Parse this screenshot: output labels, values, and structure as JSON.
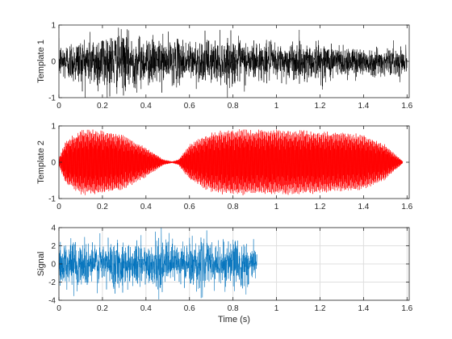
{
  "figure": {
    "xlabel": "Time (s)"
  },
  "chart_data": [
    {
      "type": "line",
      "ylabel": "Template 1",
      "xlim": [
        0,
        1.61
      ],
      "ylim": [
        -1,
        1
      ],
      "xticks": [
        0,
        0.2,
        0.4,
        0.6,
        0.8,
        1,
        1.2,
        1.4,
        1.6
      ],
      "xtick_labels": [
        "0",
        "0.2",
        "0.4",
        "0.6",
        "0.8",
        "1",
        "1.2",
        "1.4",
        "1.6"
      ],
      "yticks": [
        -1,
        0,
        1
      ],
      "ytick_labels": [
        "-1",
        "0",
        "1"
      ],
      "grid": false,
      "color": "#000000",
      "series": [
        {
          "x_range": [
            0,
            1.6
          ],
          "envelope": {
            "t": [
              0,
              0.1,
              0.2,
              0.3,
              0.4,
              0.6,
              0.8,
              1.0,
              1.1,
              1.2,
              1.4,
              1.6
            ],
            "amp": [
              0.55,
              0.75,
              0.95,
              0.9,
              0.75,
              0.65,
              0.7,
              0.55,
              0.6,
              0.6,
              0.45,
              0.42
            ]
          }
        }
      ]
    },
    {
      "type": "line",
      "ylabel": "Template 2",
      "xlim": [
        0,
        1.61
      ],
      "ylim": [
        -1,
        1
      ],
      "xticks": [
        0,
        0.2,
        0.4,
        0.6,
        0.8,
        1,
        1.2,
        1.4,
        1.6
      ],
      "xtick_labels": [
        "0",
        "0.2",
        "0.4",
        "0.6",
        "0.8",
        "1",
        "1.2",
        "1.4",
        "1.6"
      ],
      "yticks": [
        -1,
        0,
        1
      ],
      "ytick_labels": [
        "-1",
        "0",
        "1"
      ],
      "grid": false,
      "color": "#ff0000",
      "series": [
        {
          "x_range": [
            0,
            1.58
          ],
          "envelope": {
            "t": [
              0,
              0.03,
              0.1,
              0.2,
              0.3,
              0.4,
              0.48,
              0.52,
              0.55,
              0.6,
              0.7,
              0.8,
              1.0,
              1.2,
              1.4,
              1.5,
              1.58
            ],
            "amp": [
              0.1,
              0.6,
              0.9,
              0.92,
              0.75,
              0.42,
              0.08,
              0.02,
              0.08,
              0.5,
              0.85,
              0.92,
              0.92,
              0.88,
              0.78,
              0.5,
              0.03
            ]
          }
        }
      ]
    },
    {
      "type": "line",
      "ylabel": "Signal",
      "xlim": [
        0,
        1.61
      ],
      "ylim": [
        -4,
        4
      ],
      "xticks": [
        0,
        0.2,
        0.4,
        0.6,
        0.8,
        1,
        1.2,
        1.4,
        1.6
      ],
      "xtick_labels": [
        "0",
        "0.2",
        "0.4",
        "0.6",
        "0.8",
        "1",
        "1.2",
        "1.4",
        "1.6"
      ],
      "yticks": [
        -4,
        -2,
        0,
        2,
        4
      ],
      "ytick_labels": [
        "-4",
        "-2",
        "0",
        "2",
        "4"
      ],
      "grid": true,
      "color": "#0072bd",
      "series": [
        {
          "x_range": [
            0,
            0.91
          ],
          "envelope": {
            "t": [
              0,
              0.91
            ],
            "amp": [
              2.9,
              2.9
            ]
          }
        }
      ]
    }
  ]
}
